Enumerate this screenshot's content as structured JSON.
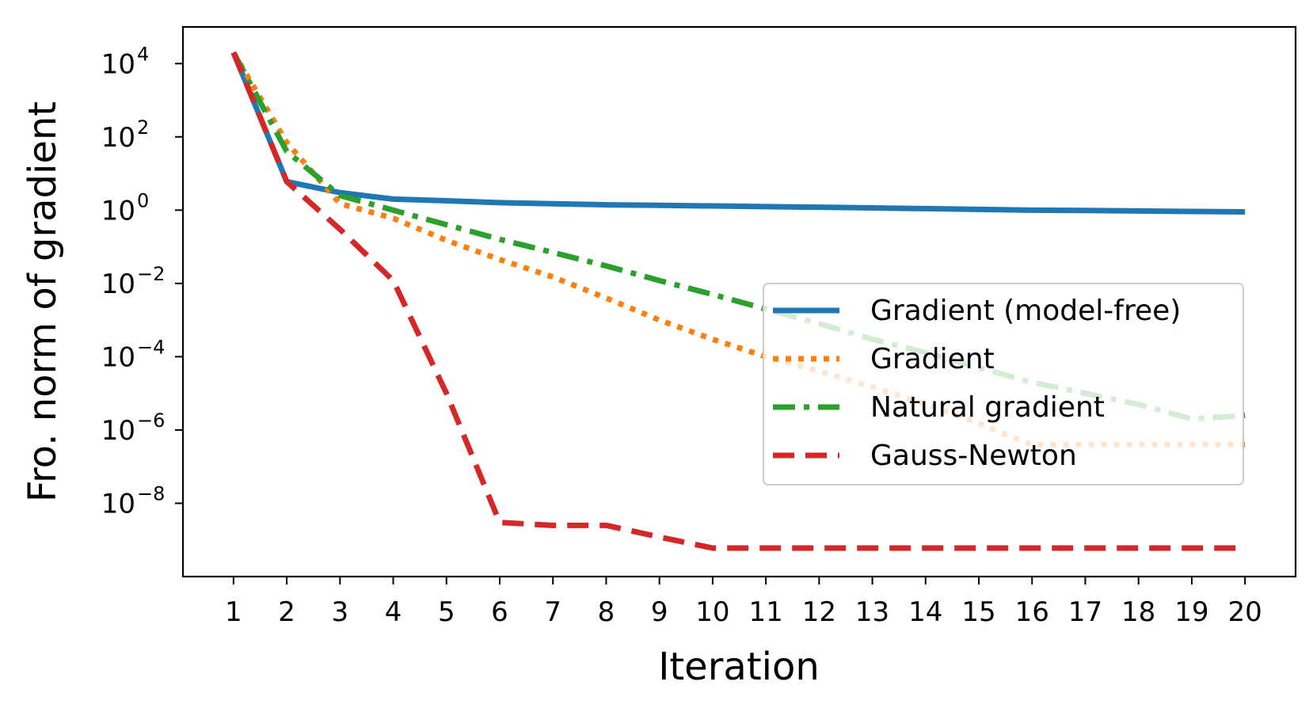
{
  "chart_data": {
    "type": "line",
    "xlabel": "Iteration",
    "ylabel": "Fro. norm of gradient",
    "yscale": "log",
    "xlim": [
      0.05,
      20.95
    ],
    "ylim_exponent": [
      -10.0,
      5.0
    ],
    "x_ticks": [
      1,
      2,
      3,
      4,
      5,
      6,
      7,
      8,
      9,
      10,
      11,
      12,
      13,
      14,
      15,
      16,
      17,
      18,
      19,
      20
    ],
    "y_ticks": [
      {
        "base": "10",
        "exponent": "4",
        "value_exponent": 4
      },
      {
        "base": "10",
        "exponent": "2",
        "value_exponent": 2
      },
      {
        "base": "10",
        "exponent": "0",
        "value_exponent": 0
      },
      {
        "base": "10",
        "exponent": "−2",
        "value_exponent": -2
      },
      {
        "base": "10",
        "exponent": "−4",
        "value_exponent": -4
      },
      {
        "base": "10",
        "exponent": "−6",
        "value_exponent": -6
      },
      {
        "base": "10",
        "exponent": "−8",
        "value_exponent": -8
      }
    ],
    "grid": false,
    "legend_position": "center-right",
    "series": [
      {
        "name": "Gradient (model-free)",
        "color": "#1f77b4",
        "style": "solid",
        "x": [
          1,
          2,
          3,
          4,
          5,
          6,
          7,
          8,
          9,
          10,
          11,
          12,
          13,
          14,
          15,
          16,
          17,
          18,
          19,
          20
        ],
        "y": [
          20000,
          6,
          3,
          2.0,
          1.8,
          1.6,
          1.5,
          1.4,
          1.35,
          1.3,
          1.25,
          1.2,
          1.15,
          1.1,
          1.05,
          1.0,
          0.98,
          0.95,
          0.92,
          0.9
        ]
      },
      {
        "name": "Gradient",
        "color": "#ff7f0e",
        "style": "dotted",
        "x": [
          1,
          2,
          3,
          4,
          5,
          6,
          7,
          8,
          9,
          10,
          11,
          12,
          13,
          14,
          15,
          16,
          17,
          18,
          19,
          20
        ],
        "y": [
          20000,
          70,
          1.5,
          0.6,
          0.15,
          0.045,
          0.015,
          0.004,
          0.001,
          0.0003,
          0.0001,
          4e-05,
          1.5e-05,
          5e-06,
          1.5e-06,
          4e-07,
          4e-07,
          4e-07,
          4e-07,
          4e-07
        ]
      },
      {
        "name": "Natural gradient",
        "color": "#2ca02c",
        "style": "dashdot",
        "x": [
          1,
          2,
          3,
          4,
          5,
          6,
          7,
          8,
          9,
          10,
          11,
          12,
          13,
          14,
          15,
          16,
          17,
          18,
          19,
          20
        ],
        "y": [
          20000,
          40,
          2.5,
          1.0,
          0.4,
          0.16,
          0.07,
          0.03,
          0.012,
          0.005,
          0.002,
          0.0008,
          0.0003,
          0.00013,
          5e-05,
          2e-05,
          1e-05,
          5e-06,
          2e-06,
          2.5e-06
        ]
      },
      {
        "name": "Gauss-Newton",
        "color": "#d62728",
        "style": "dashed",
        "x": [
          1,
          2,
          3,
          4,
          5,
          6,
          7,
          8,
          9,
          10,
          11,
          12,
          13,
          14,
          15,
          16,
          17,
          18,
          19,
          20
        ],
        "y": [
          20000,
          6,
          0.3,
          0.012,
          1e-05,
          3e-09,
          2.5e-09,
          2.5e-09,
          1.2e-09,
          6e-10,
          6e-10,
          6e-10,
          6e-10,
          6e-10,
          6e-10,
          6e-10,
          6e-10,
          6e-10,
          6e-10,
          6e-10
        ]
      }
    ]
  }
}
